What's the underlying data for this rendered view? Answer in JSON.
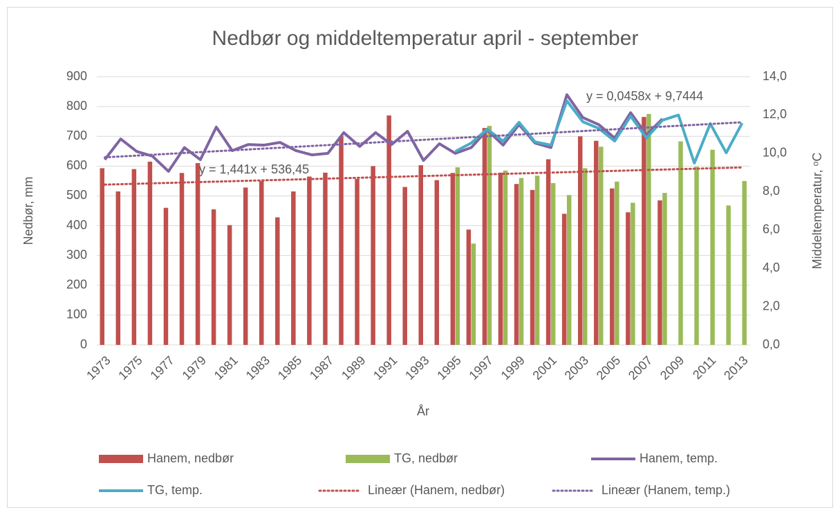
{
  "chart_data": {
    "type": "bar-line",
    "title": "Nedbør og middeltemperatur april - september",
    "x_label": "År",
    "y_label": "Nedbør, mm",
    "y2_label": "Middeltemperatur, ᵒC",
    "categories": [
      "1973",
      null,
      "1975",
      null,
      "1977",
      null,
      "1979",
      null,
      "1981",
      null,
      "1983",
      null,
      "1985",
      null,
      "1987",
      null,
      "1989",
      null,
      "1991",
      null,
      "1993",
      null,
      "1995",
      null,
      "1997",
      null,
      "1999",
      null,
      "2001",
      null,
      "2003",
      null,
      "2005",
      null,
      "2007",
      null,
      "2009",
      null,
      "2011",
      null,
      "2013"
    ],
    "series": [
      {
        "name": "Hanem, nedbør",
        "kind": "bar",
        "color": "#c0504d",
        "axis": "y",
        "values": [
          593,
          515,
          590,
          615,
          460,
          577,
          610,
          455,
          402,
          528,
          550,
          428,
          515,
          565,
          578,
          700,
          557,
          600,
          770,
          530,
          603,
          553,
          577,
          387,
          728,
          578,
          540,
          520,
          623,
          440,
          700,
          685,
          525,
          445,
          765,
          485,
          null,
          null,
          null,
          null,
          null
        ]
      },
      {
        "name": "TG, nedbør",
        "kind": "bar",
        "color": "#9bbb59",
        "axis": "y",
        "values": [
          null,
          null,
          null,
          null,
          null,
          null,
          null,
          null,
          null,
          null,
          null,
          null,
          null,
          null,
          null,
          null,
          null,
          null,
          null,
          null,
          null,
          null,
          596,
          340,
          735,
          585,
          560,
          568,
          543,
          503,
          593,
          665,
          548,
          477,
          775,
          510,
          683,
          598,
          655,
          468,
          550
        ]
      },
      {
        "name": "Hanem, temp.",
        "kind": "line",
        "color": "#8064a2",
        "axis": "y2",
        "values": [
          9.67,
          10.75,
          10.1,
          9.85,
          9.06,
          10.3,
          9.67,
          11.37,
          10.14,
          10.46,
          10.43,
          10.57,
          10.14,
          9.92,
          10.0,
          11.08,
          10.36,
          11.08,
          10.46,
          11.15,
          9.63,
          10.5,
          10.0,
          10.3,
          11.22,
          10.43,
          11.5,
          10.54,
          10.3,
          13.06,
          11.87,
          11.5,
          10.8,
          12.12,
          10.97,
          11.8,
          null,
          null,
          null,
          null,
          null
        ]
      },
      {
        "name": "TG, temp.",
        "kind": "line",
        "color": "#4bacc6",
        "axis": "y2",
        "values": [
          null,
          null,
          null,
          null,
          null,
          null,
          null,
          null,
          null,
          null,
          null,
          null,
          null,
          null,
          null,
          null,
          null,
          null,
          null,
          null,
          null,
          null,
          10.1,
          10.54,
          11.26,
          10.64,
          11.62,
          10.6,
          10.43,
          12.74,
          11.65,
          11.3,
          10.64,
          11.94,
          10.8,
          11.73,
          12.0,
          9.49,
          11.55,
          10.03,
          11.58
        ]
      }
    ],
    "trendlines": [
      {
        "name": "Lineær (Hanem, nedbør)",
        "color": "#c0504d",
        "axis": "y",
        "slope": 1.441,
        "intercept": 536.45,
        "label": "y = 1,441x + 536,45"
      },
      {
        "name": "Lineær (Hanem, temp.)",
        "color": "#8064a2",
        "axis": "y2",
        "slope": 0.0458,
        "intercept": 9.7444,
        "label": "y = 0,0458x + 9,7444"
      }
    ],
    "ylim": [
      0,
      900
    ],
    "yticks": [
      0,
      100,
      200,
      300,
      400,
      500,
      600,
      700,
      800,
      900
    ],
    "y2lim": [
      0,
      14
    ],
    "y2ticks": [
      {
        "value": 0,
        "label": "0,0"
      },
      {
        "value": 2,
        "label": "2,0"
      },
      {
        "value": 4,
        "label": "4,0"
      },
      {
        "value": 6,
        "label": "6,0"
      },
      {
        "value": 8,
        "label": "8,0"
      },
      {
        "value": 10,
        "label": "10,0"
      },
      {
        "value": 12,
        "label": "12,0"
      },
      {
        "value": 14,
        "label": "14,0"
      }
    ],
    "legend": "bottom"
  }
}
